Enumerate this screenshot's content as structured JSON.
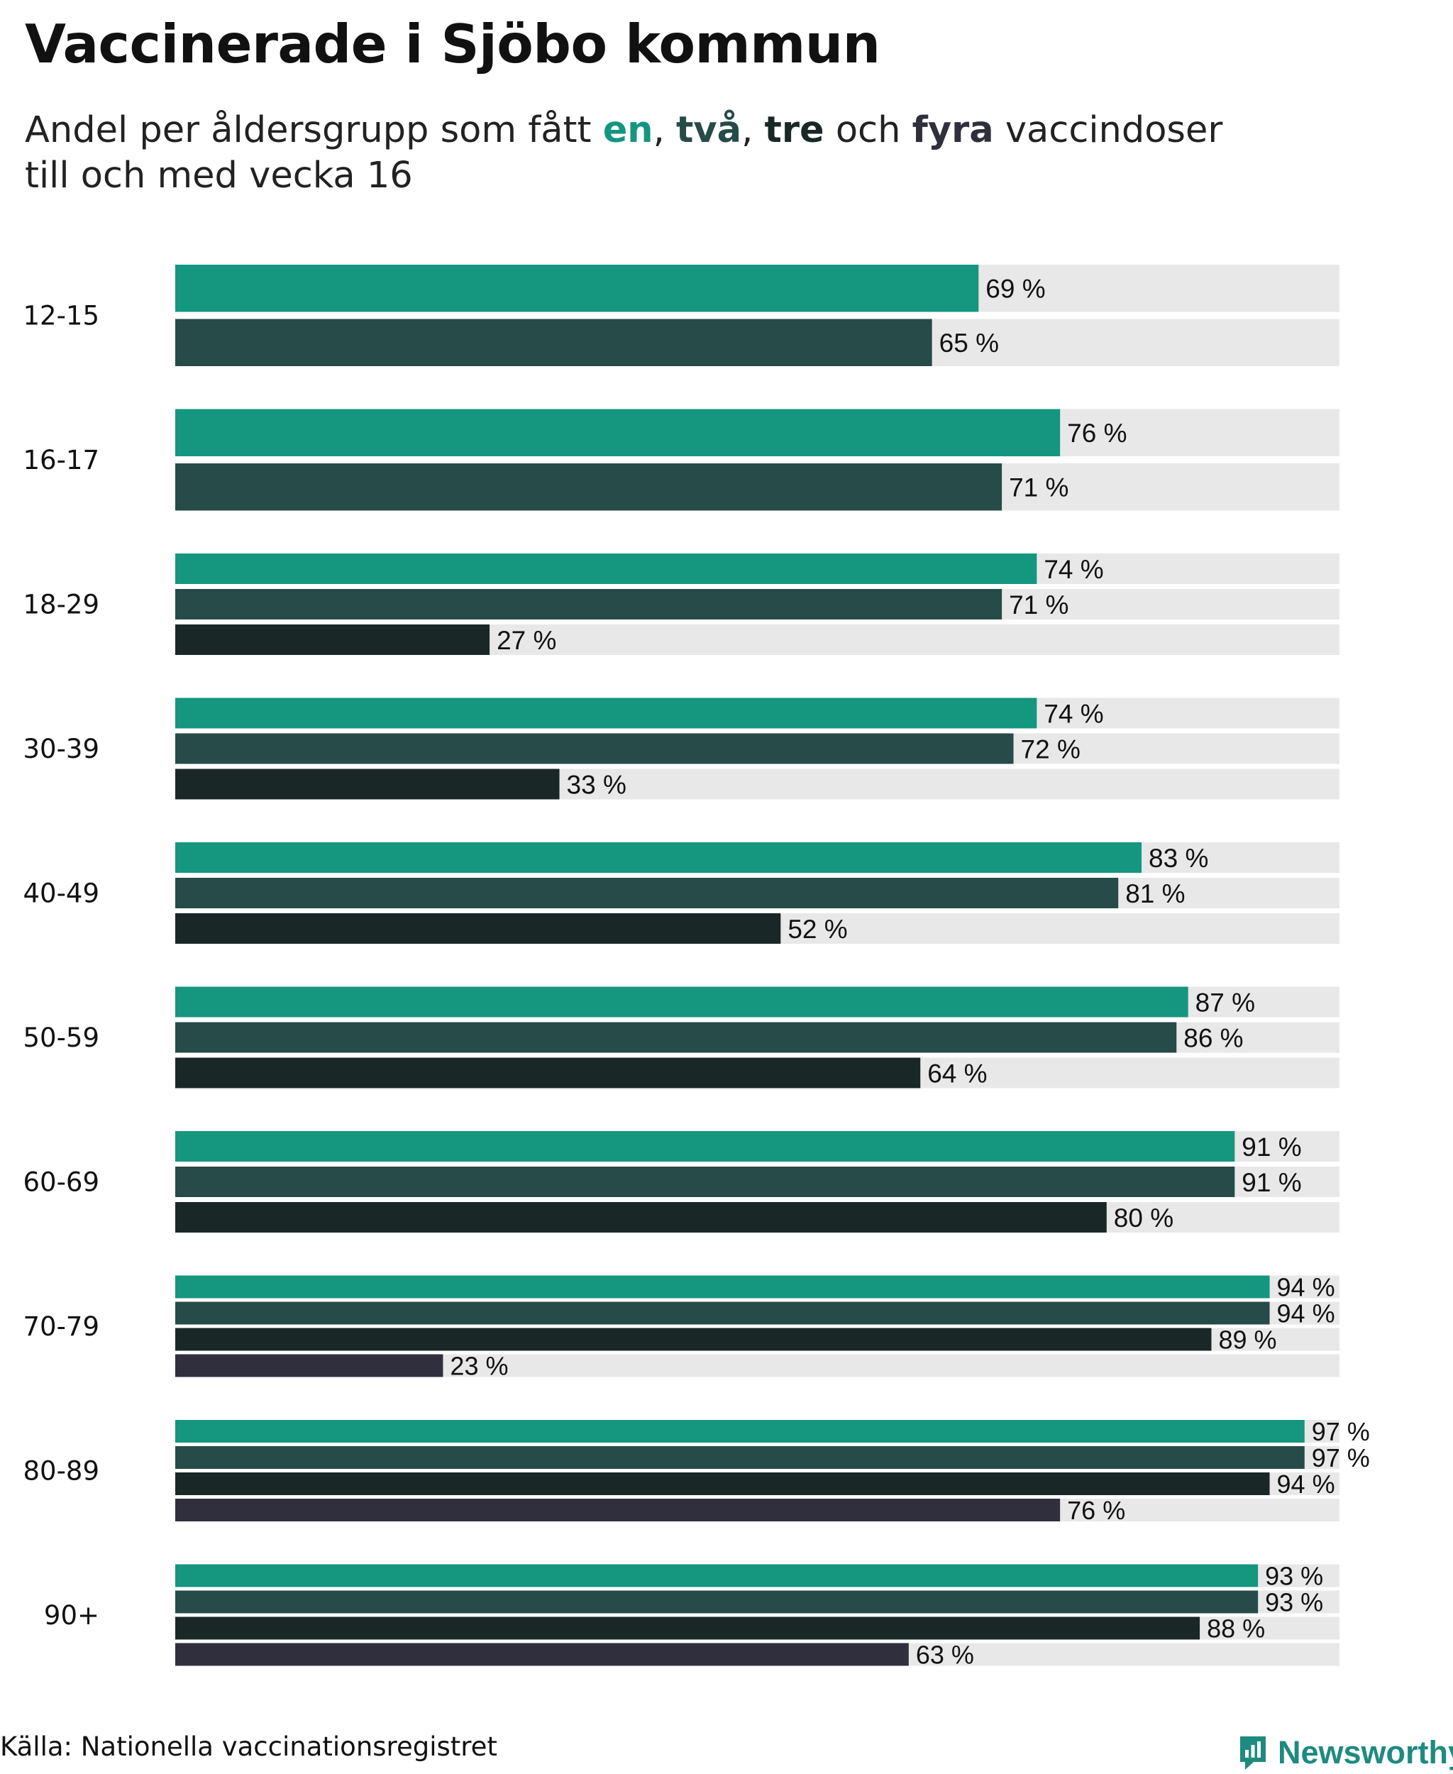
{
  "title": "Vaccinerade i Sjöbo kommun",
  "subtitle": {
    "prefix": "Andel per åldersgrupp som fått ",
    "w1": "en",
    "sep1": ", ",
    "w2": "två",
    "sep2": ", ",
    "w3": "tre",
    "sep3": " och ",
    "w4": "fyra",
    "suffix": " vaccindoser",
    "line2": "till och med vecka 16"
  },
  "source": "Källa: Nationella vaccinationsregistret",
  "brand": {
    "name": "Newsworthy",
    "icon": "newsworthy-logo-icon"
  },
  "colors": {
    "dose1": "#14967f",
    "dose2": "#264b48",
    "dose3": "#192826",
    "dose4": "#302f3d",
    "track": "#e8e8e8",
    "brand": "#1f8a80"
  },
  "chart_data": {
    "type": "bar",
    "orientation": "horizontal",
    "title": "Vaccinerade i Sjöbo kommun",
    "xlim": [
      0,
      100
    ],
    "unit": "%",
    "categories": [
      "12-15",
      "16-17",
      "18-29",
      "30-39",
      "40-49",
      "50-59",
      "60-69",
      "70-79",
      "80-89",
      "90+"
    ],
    "series": [
      {
        "name": "en",
        "values": [
          69,
          76,
          74,
          74,
          83,
          87,
          91,
          94,
          97,
          93
        ]
      },
      {
        "name": "två",
        "values": [
          65,
          71,
          71,
          72,
          81,
          86,
          91,
          94,
          97,
          93
        ]
      },
      {
        "name": "tre",
        "values": [
          null,
          null,
          27,
          33,
          52,
          64,
          80,
          89,
          94,
          88
        ]
      },
      {
        "name": "fyra",
        "values": [
          null,
          null,
          null,
          null,
          null,
          null,
          null,
          23,
          76,
          63
        ]
      }
    ]
  }
}
